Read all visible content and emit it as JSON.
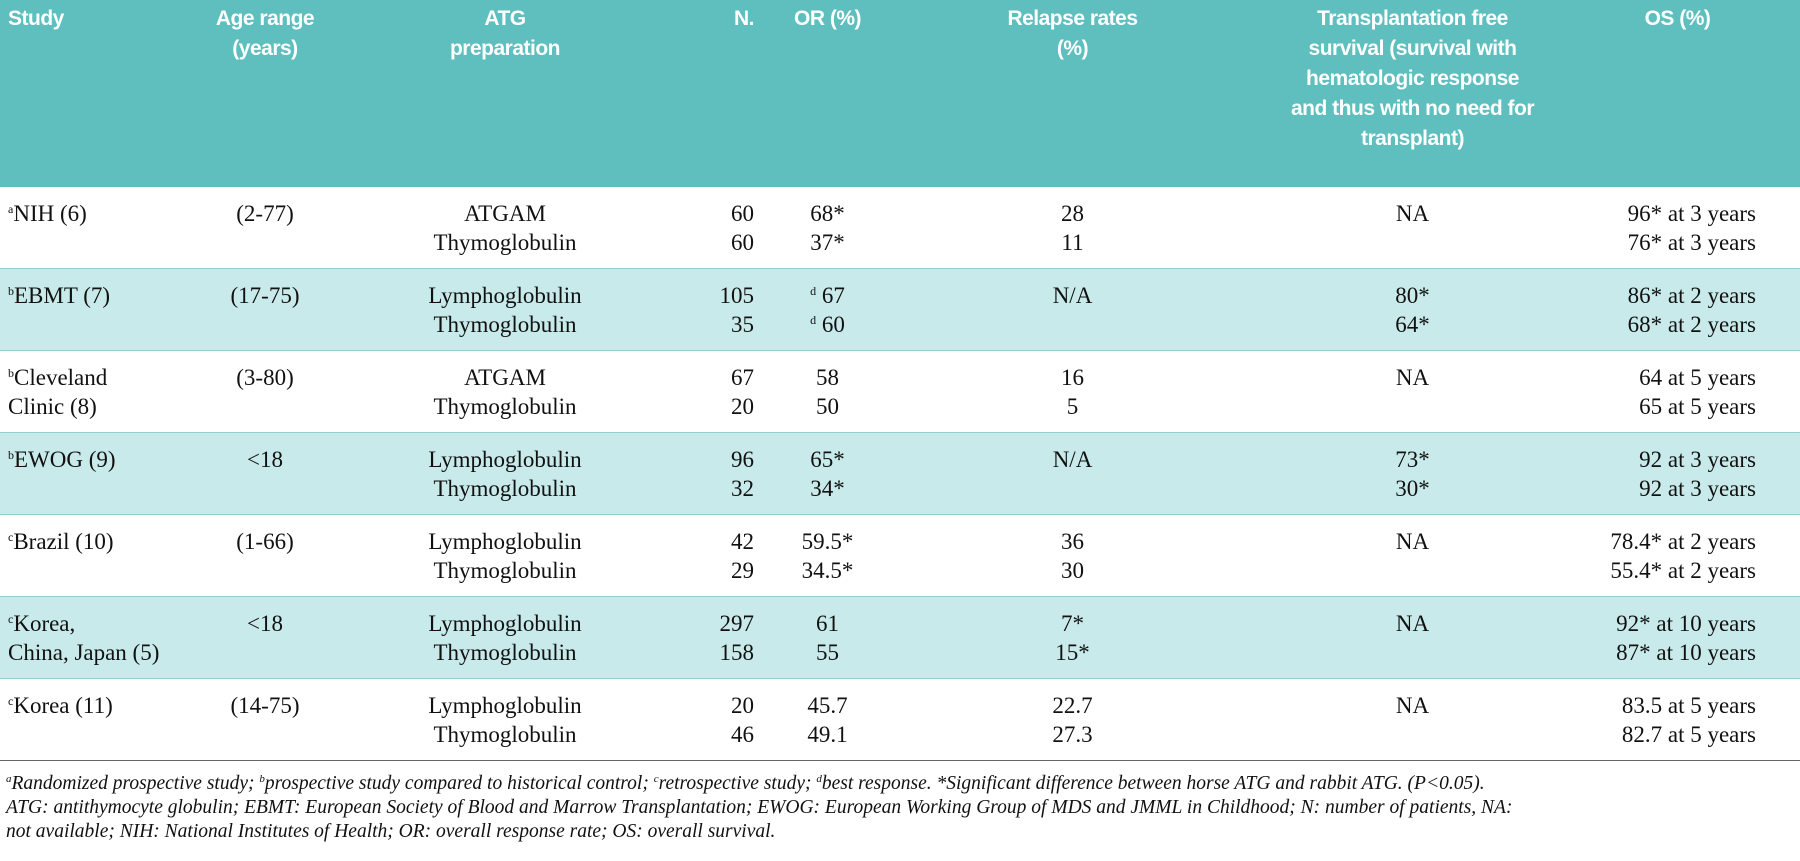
{
  "table": {
    "header": [
      [
        "Study"
      ],
      [
        "Age range",
        "(years)"
      ],
      [
        "ATG",
        "preparation"
      ],
      [
        "N."
      ],
      [
        "OR (%)"
      ],
      [
        "Relapse rates",
        "(%)"
      ],
      [
        "Transplantation free",
        "survival (survival with",
        "hematologic response",
        "and thus with no need for",
        "transplant)"
      ],
      [
        "OS (%)"
      ]
    ],
    "groups": [
      {
        "note": "a",
        "study": [
          "NIH (6)"
        ],
        "age": "(2-77)",
        "lines": [
          {
            "atg": "ATGAM",
            "n": 60,
            "or": "68*",
            "relapse": 28,
            "tfs": "NA",
            "os": "96* at 3 years"
          },
          {
            "atg": "Thymoglobulin",
            "n": 60,
            "or": "37*",
            "relapse": 11,
            "os": "76* at 3 years"
          }
        ]
      },
      {
        "note": "b",
        "study": [
          "EBMT (7)"
        ],
        "age": "(17-75)",
        "lines": [
          {
            "atg": "Lymphoglobulin",
            "n": 105,
            "or": {
              "note": "d",
              "text": "67"
            },
            "relapse": "N/A",
            "tfs": "80*",
            "os": "86* at 2 years"
          },
          {
            "atg": "Thymoglobulin",
            "n": 35,
            "or": {
              "note": "d",
              "text": "60"
            },
            "tfs": "64*",
            "os": "68* at 2 years"
          }
        ]
      },
      {
        "note": "b",
        "study": [
          "Cleveland",
          "Clinic (8)"
        ],
        "age": "(3-80)",
        "lines": [
          {
            "atg": "ATGAM",
            "n": 67,
            "or": 58,
            "relapse": 16,
            "tfs": "NA",
            "os": "64 at 5 years"
          },
          {
            "atg": "Thymoglobulin",
            "n": 20,
            "or": 50,
            "relapse": 5,
            "os": "65 at 5 years"
          }
        ]
      },
      {
        "note": "b",
        "study": [
          "EWOG (9)"
        ],
        "age": "<18",
        "lines": [
          {
            "atg": "Lymphoglobulin",
            "n": 96,
            "or": "65*",
            "relapse": "N/A",
            "tfs": "73*",
            "os": "92 at 3 years"
          },
          {
            "atg": "Thymoglobulin",
            "n": 32,
            "or": "34*",
            "tfs": "30*",
            "os": "92 at 3 years"
          }
        ]
      },
      {
        "note": "c",
        "study": [
          "Brazil (10)"
        ],
        "age": "(1-66)",
        "lines": [
          {
            "atg": "Lymphoglobulin",
            "n": 42,
            "or": "59.5*",
            "relapse": 36,
            "tfs": "NA",
            "os": "78.4* at 2 years"
          },
          {
            "atg": "Thymoglobulin",
            "n": 29,
            "or": "34.5*",
            "relapse": 30,
            "os": "55.4* at 2 years"
          }
        ]
      },
      {
        "note": "c",
        "study": [
          "Korea,",
          "China, Japan (5)"
        ],
        "age": "<18",
        "lines": [
          {
            "atg": "Lymphoglobulin",
            "n": 297,
            "or": 61,
            "relapse": "7*",
            "tfs": "NA",
            "os": "92* at 10 years"
          },
          {
            "atg": "Thymoglobulin",
            "n": 158,
            "or": 55,
            "relapse": "15*",
            "os": "87* at 10 years"
          }
        ]
      },
      {
        "note": "c",
        "study": [
          "Korea (11)"
        ],
        "age": "(14-75)",
        "lines": [
          {
            "atg": "Lymphoglobulin",
            "n": 20,
            "or": 45.7,
            "relapse": 22.7,
            "tfs": "NA",
            "os": "83.5 at 5 years"
          },
          {
            "atg": "Thymoglobulin",
            "n": 46,
            "or": 49.1,
            "relapse": 27.3,
            "os": "82.7 at 5 years"
          }
        ]
      }
    ]
  },
  "footnote": {
    "notes": [
      {
        "note": "a",
        "text": "Randomized prospective study; "
      },
      {
        "note": "b",
        "text": "prospective study compared to historical control; "
      },
      {
        "note": "c",
        "text": "retrospective study; "
      },
      {
        "note": "d",
        "text": "best response. *Significant difference between horse ATG and rabbit ATG.  (P<0.05)."
      }
    ],
    "abbreviations": [
      "ATG: antithymocyte globulin; EBMT:  European Society of Blood and Marrow Transplantation; EWOG: European Working Group of MDS and JMML in Childhood; N: number of patients, NA:",
      "not available; NIH: National Institutes of Health; OR: overall response rate; OS: overall survival."
    ]
  }
}
